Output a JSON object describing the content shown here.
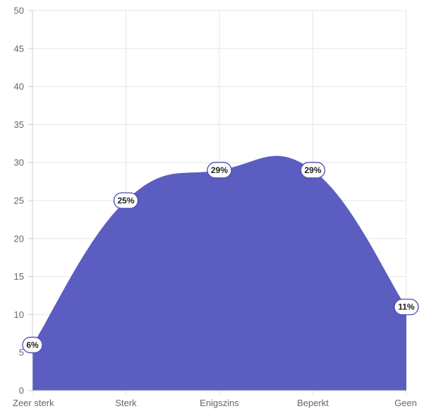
{
  "chart_data": {
    "type": "area",
    "categories": [
      "Zeer sterk",
      "Sterk",
      "Enigszins",
      "Beperkt",
      "Geen"
    ],
    "series": [
      {
        "values": [
          6,
          25,
          29,
          29,
          11
        ],
        "labels": [
          "6%",
          "25%",
          "29%",
          "29%",
          "11%"
        ]
      }
    ],
    "y_ticks": [
      "0",
      "5",
      "10",
      "15",
      "20",
      "25",
      "30",
      "35",
      "40",
      "45",
      "50"
    ],
    "ylim": [
      0,
      50
    ],
    "grid": true,
    "smooth": true,
    "fill_color": "#5b5ec0",
    "label_border_color": "#4a4db3"
  }
}
